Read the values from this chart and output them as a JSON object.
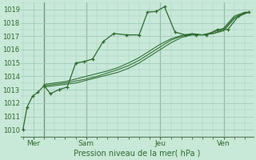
{
  "bg_color": "#c8e8d8",
  "grid_color": "#a0ccc0",
  "line_color": "#2d6b2d",
  "marker_color": "#2d6b2d",
  "title": "Pression niveau de la mer( hPa )",
  "ylim": [
    1009.5,
    1019.5
  ],
  "yticks": [
    1010,
    1011,
    1012,
    1013,
    1014,
    1015,
    1016,
    1017,
    1018,
    1019
  ],
  "xtick_labels": [
    "Mer",
    "Sam",
    "Jeu",
    "Ven"
  ],
  "xtick_positions": [
    0.5,
    3.0,
    6.5,
    9.5
  ],
  "series": [
    {
      "x": [
        0.0,
        0.2,
        0.45,
        0.7,
        1.0,
        1.3,
        1.7,
        2.1,
        2.5,
        2.9,
        3.3,
        3.8,
        4.3,
        4.9,
        5.5,
        5.9,
        6.3,
        6.7,
        7.2,
        7.7,
        8.2,
        8.7,
        9.2,
        9.7,
        10.2,
        10.7
      ],
      "y": [
        1010.0,
        1011.7,
        1012.5,
        1012.8,
        1013.3,
        1012.7,
        1013.0,
        1013.2,
        1015.0,
        1015.1,
        1015.3,
        1016.6,
        1017.2,
        1017.1,
        1017.1,
        1018.8,
        1018.85,
        1019.2,
        1017.3,
        1017.1,
        1017.1,
        1017.1,
        1017.5,
        1017.5,
        1018.5,
        1018.8
      ],
      "has_markers": true
    },
    {
      "x": [
        1.0,
        1.5,
        2.0,
        2.5,
        3.0,
        3.5,
        4.0,
        4.5,
        5.0,
        5.5,
        6.0,
        6.5,
        7.0,
        7.5,
        8.0,
        8.5,
        9.0,
        9.5,
        10.0,
        10.5,
        10.7
      ],
      "y": [
        1013.2,
        1013.3,
        1013.4,
        1013.5,
        1013.7,
        1013.9,
        1014.1,
        1014.3,
        1014.6,
        1015.0,
        1015.5,
        1016.0,
        1016.5,
        1016.9,
        1017.1,
        1017.1,
        1017.2,
        1017.4,
        1018.3,
        1018.7,
        1018.8
      ],
      "has_markers": false
    },
    {
      "x": [
        1.0,
        1.5,
        2.0,
        2.5,
        3.0,
        3.5,
        4.0,
        4.5,
        5.0,
        5.5,
        6.0,
        6.5,
        7.0,
        7.5,
        8.0,
        8.5,
        9.0,
        9.5,
        10.0,
        10.5,
        10.7
      ],
      "y": [
        1013.3,
        1013.4,
        1013.5,
        1013.65,
        1013.8,
        1014.0,
        1014.25,
        1014.5,
        1014.8,
        1015.2,
        1015.7,
        1016.2,
        1016.7,
        1017.0,
        1017.15,
        1017.1,
        1017.2,
        1017.5,
        1018.4,
        1018.75,
        1018.8
      ],
      "has_markers": false
    },
    {
      "x": [
        1.0,
        1.5,
        2.0,
        2.5,
        3.0,
        3.5,
        4.0,
        4.5,
        5.0,
        5.5,
        6.0,
        6.5,
        7.0,
        7.5,
        8.0,
        8.5,
        9.0,
        9.5,
        10.0,
        10.5,
        10.7
      ],
      "y": [
        1013.4,
        1013.5,
        1013.6,
        1013.8,
        1014.0,
        1014.2,
        1014.4,
        1014.65,
        1015.0,
        1015.4,
        1015.9,
        1016.4,
        1016.8,
        1017.05,
        1017.2,
        1017.1,
        1017.3,
        1017.6,
        1018.5,
        1018.8,
        1018.8
      ],
      "has_markers": false
    }
  ],
  "vline_positions": [
    1.0,
    3.0,
    6.5,
    9.5
  ],
  "vline_color": "#5a7a5a"
}
